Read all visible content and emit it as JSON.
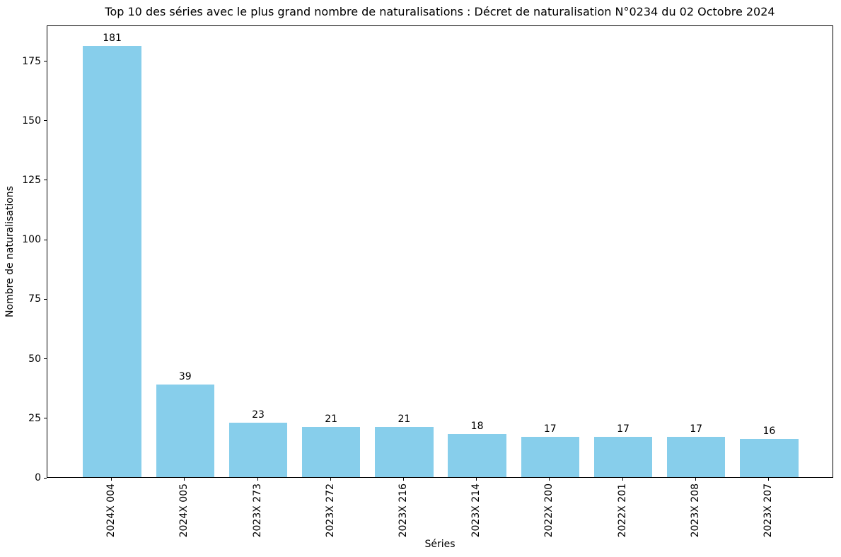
{
  "chart_data": {
    "type": "bar",
    "title": "Top 10 des séries avec le plus grand nombre de naturalisations : Décret de naturalisation N°0234 du 02 Octobre 2024",
    "categories": [
      "2024X 004",
      "2024X 005",
      "2023X 273",
      "2023X 272",
      "2023X 216",
      "2023X 214",
      "2022X 200",
      "2022X 201",
      "2023X 208",
      "2023X 207"
    ],
    "values": [
      181,
      39,
      23,
      21,
      21,
      18,
      17,
      17,
      17,
      16
    ],
    "bar_value_labels": [
      "181",
      "39",
      "23",
      "21",
      "21",
      "18",
      "17",
      "17",
      "17",
      "16"
    ],
    "xlabel": "Séries",
    "ylabel": "Nombre de naturalisations",
    "ylim": [
      0,
      190
    ],
    "yticks": [
      0,
      25,
      50,
      75,
      100,
      125,
      150,
      175
    ],
    "bar_color": "#87CEEB",
    "text_color": "#000000",
    "grid": false,
    "legend": null,
    "x_tick_rotation_deg": 90
  }
}
